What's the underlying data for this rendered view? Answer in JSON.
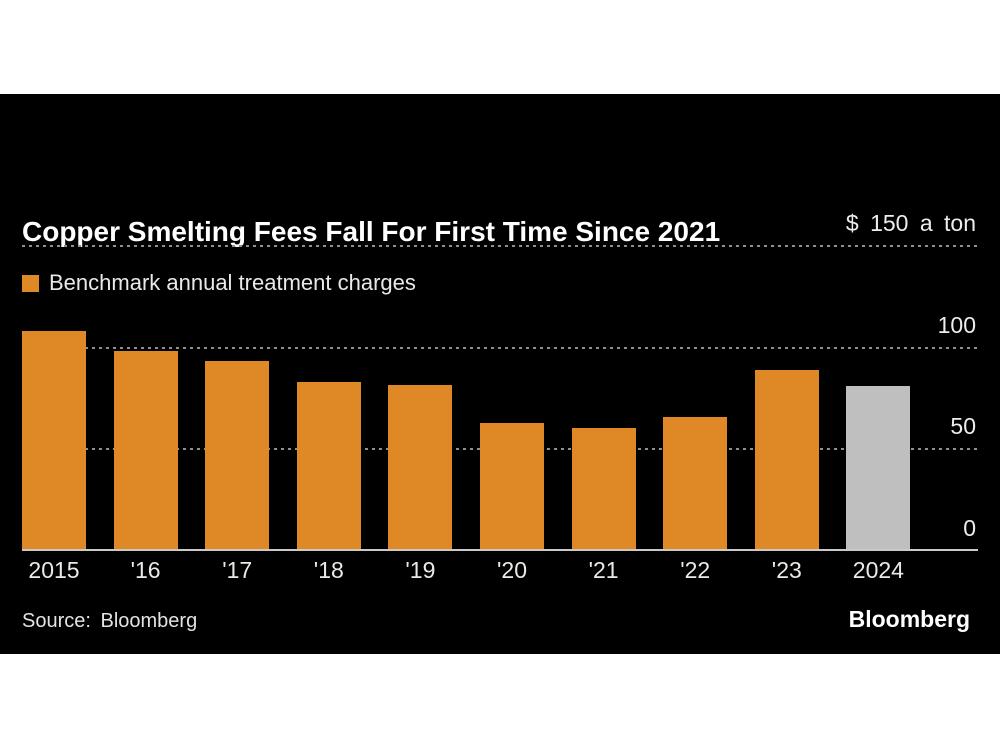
{
  "header": {
    "title": "Copper Smelting Fees Fall For First Time Since 2021",
    "legend_label": "Benchmark annual treatment charges"
  },
  "chart_data": {
    "type": "bar",
    "title": "Copper Smelting Fees Fall For First Time Since 2021",
    "legend": [
      "Benchmark annual treatment charges"
    ],
    "categories": [
      "2015",
      "'16",
      "'17",
      "'18",
      "'19",
      "'20",
      "'21",
      "'22",
      "'23",
      "2024"
    ],
    "values": [
      107,
      97.35,
      92.5,
      82.25,
      80.8,
      62,
      59.5,
      65,
      88,
      80
    ],
    "ylabel": "$ 150 a ton",
    "ylim": [
      0,
      150
    ],
    "yticks": [
      0,
      50,
      100,
      150
    ],
    "ytick_labels": [
      "0",
      "50",
      "100",
      "$ 150 a ton"
    ],
    "grid": "horizontal-dotted",
    "legend_position": "top-left",
    "highlight_last_bar": true
  },
  "footer": {
    "source": "Source: Bloomberg",
    "logo": "Bloomberg"
  },
  "colors": {
    "page_bg": "#ffffff",
    "panel_bg": "#000000",
    "bar": "#de8926",
    "bar_highlight": "#bfbfbf",
    "gridline": "#8f8f8f",
    "axis_line": "#c9c9c9",
    "title_text": "#ffffff",
    "label_text": "#e9e9e9"
  }
}
